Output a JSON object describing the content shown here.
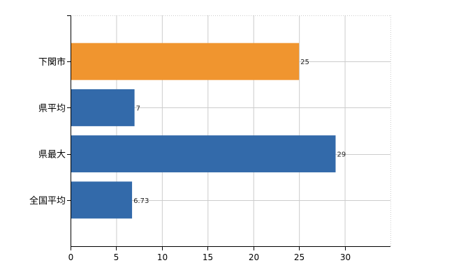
{
  "chart_data": {
    "type": "bar",
    "orientation": "horizontal",
    "categories": [
      "下関市",
      "県平均",
      "県最大",
      "全国平均"
    ],
    "values": [
      25,
      7,
      29,
      6.73
    ],
    "value_labels": [
      "25",
      "7",
      "29",
      "6.73"
    ],
    "bar_colors": [
      "#F0952F",
      "#336AAA",
      "#336AAA",
      "#336AAA"
    ],
    "xlim": [
      0,
      35
    ],
    "xticks": [
      0,
      5,
      10,
      15,
      20,
      25,
      30
    ],
    "xtick_labels": [
      "0",
      "5",
      "10",
      "15",
      "20",
      "25",
      "30"
    ],
    "grid": true,
    "grid_color": "#cccccc"
  }
}
